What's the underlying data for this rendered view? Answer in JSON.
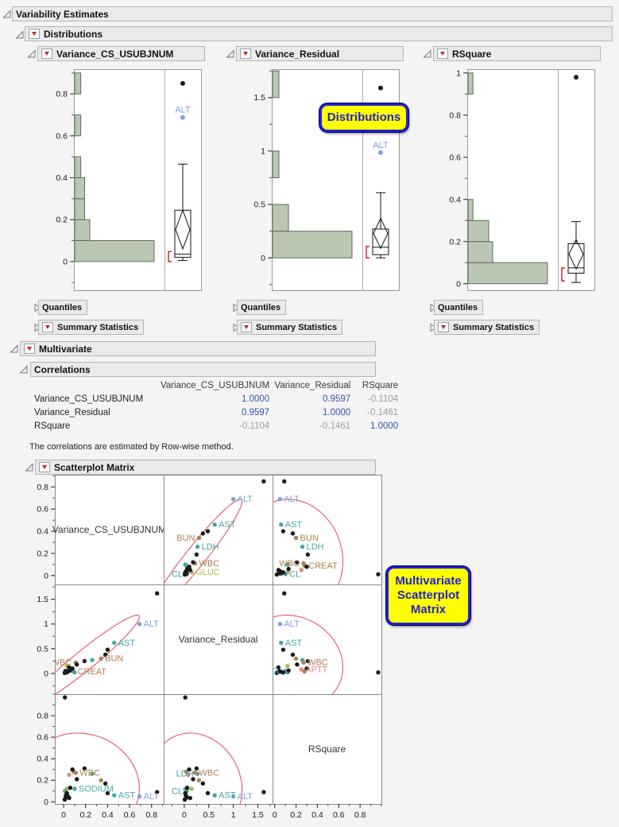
{
  "window": {
    "title": "Variability Estimates",
    "background": "#f4f4f4"
  },
  "headers": {
    "variability": "Variability Estimates",
    "distributions": "Distributions",
    "multivariate": "Multivariate",
    "correlations": "Correlations",
    "scatterplot_matrix": "Scatterplot Matrix",
    "quantiles": "Quantiles",
    "summary_statistics": "Summary Statistics"
  },
  "callouts": [
    {
      "text": "Distributions"
    },
    {
      "text": "Multivariate\nScatterplot\nMatrix"
    }
  ],
  "colors": {
    "corr_strong": "#3453b4",
    "corr_weak": "#a39ba3",
    "hist_fill": "#b9c7b3",
    "hist_stroke": "#5f6a5d",
    "ellipse": "#e8556a",
    "bracket": "#cc3344",
    "callout_bg": "#ffff00",
    "callout_accent": "#2222cc",
    "header_bg": "#eaeaea",
    "header_border": "#b4b4b4",
    "red_triangle": "#cc2231",
    "black_point": "#1a1a1a",
    "frame": "#999999"
  },
  "chart_data": {
    "distributions": [
      {
        "name": "Variance_CS_USUBJNUM",
        "type": "histogram+boxplot",
        "axis": {
          "min": -0.137,
          "max": 0.918,
          "majors": [
            0,
            0.2,
            0.4,
            0.6,
            0.8
          ],
          "labels": [
            "0",
            "0.2",
            "0.4",
            "0.6",
            "0.8"
          ],
          "minor": 0.1
        },
        "hist": {
          "start": 0,
          "step": 0.1,
          "frac": [
            1,
            0.19,
            0.125,
            0.125,
            0.076,
            0,
            0.076,
            0,
            0.076
          ]
        },
        "box": {
          "low": 0.005,
          "q1": 0.02,
          "median": 0.035,
          "q3": 0.245,
          "high": 0.465,
          "mean_diamond": [
            0.06,
            0.245
          ],
          "shortest_half": [
            0,
            0.048
          ]
        },
        "outliers": [
          {
            "v": 0.85,
            "color": "#1a1a1a",
            "label": ""
          },
          {
            "v": 0.688,
            "color": "#7d9ee0",
            "label": "ALT"
          }
        ]
      },
      {
        "name": "Variance_Residual",
        "type": "histogram+boxplot",
        "axis": {
          "min": -0.303,
          "max": 1.766,
          "majors": [
            0,
            0.5,
            1,
            1.5
          ],
          "labels": [
            "0",
            "0.5",
            "1",
            "1.5"
          ],
          "minor": 0.25
        },
        "hist": {
          "start": 0,
          "step": 0.25,
          "frac": [
            1,
            0.2,
            0,
            0.08,
            0,
            0,
            0.08
          ]
        },
        "box": {
          "low": 0.0,
          "q1": 0.03,
          "median": 0.1,
          "q3": 0.27,
          "high": 0.61,
          "mean_diamond": [
            0.09,
            0.37
          ],
          "shortest_half": [
            0,
            0.107
          ]
        },
        "outliers": [
          {
            "v": 1.59,
            "color": "#1a1a1a",
            "label": ""
          },
          {
            "v": 0.985,
            "color": "#7d9ee0",
            "label": "ALT"
          }
        ]
      },
      {
        "name": "RSquare",
        "type": "histogram+boxplot",
        "axis": {
          "min": -0.031,
          "max": 1.018,
          "majors": [
            0,
            0.2,
            0.4,
            0.6,
            0.8,
            1
          ],
          "labels": [
            "0",
            "0.2",
            "0.4",
            "0.6",
            "0.8",
            "1"
          ],
          "minor": 0.1
        },
        "hist": {
          "start": 0,
          "step": 0.1,
          "frac": [
            1,
            0.31,
            0.26,
            0.062,
            0,
            0,
            0,
            0,
            0,
            0.062
          ]
        },
        "box": {
          "low": 0.006,
          "q1": 0.05,
          "median": 0.075,
          "q3": 0.19,
          "high": 0.295,
          "mean_diamond": [
            0.07,
            0.21
          ],
          "shortest_half": [
            0.013,
            0.075
          ]
        },
        "outliers": [
          {
            "v": 0.98,
            "color": "#1a1a1a",
            "label": ""
          }
        ]
      }
    ],
    "correlation_table": {
      "method_columns": [
        "Variance_CS_USUBJNUM",
        "Variance_Residual",
        "RSquare"
      ],
      "rows": [
        {
          "label": "Variance_CS_USUBJNUM",
          "values": [
            "1.0000",
            "0.9597",
            "-0.1104"
          ],
          "tones": [
            "strong",
            "strong",
            "weak"
          ]
        },
        {
          "label": "Variance_Residual",
          "values": [
            "0.9597",
            "1.0000",
            "-0.1461"
          ],
          "tones": [
            "strong",
            "strong",
            "weak"
          ]
        },
        {
          "label": "RSquare",
          "values": [
            "-0.1104",
            "-0.1461",
            "1.0000"
          ],
          "tones": [
            "weak",
            "weak",
            "strong"
          ]
        }
      ]
    },
    "correlation_footnote": "The correlations are estimated by Row-wise method.",
    "scatterplot_matrix": {
      "type": "scatter",
      "variables": [
        {
          "key": "vcs",
          "label": "Variance_CS_USUBJNUM",
          "min": -0.08,
          "max": 0.91,
          "majors": [
            0,
            0.2,
            0.4,
            0.6,
            0.8
          ],
          "labels": [
            "0",
            "0.2",
            "0.4",
            "0.6",
            "0.8"
          ],
          "minor": 0.1
        },
        {
          "key": "vr",
          "label": "Variance_Residual",
          "min": -0.42,
          "max": 1.8,
          "majors": [
            0,
            0.5,
            1,
            1.5
          ],
          "labels": [
            "0",
            "0.5",
            "1",
            "1.5"
          ],
          "minor": 0.25
        },
        {
          "key": "rsq",
          "label": "RSquare",
          "min": -0.02,
          "max": 1.0,
          "majors": [
            0,
            0.2,
            0.4,
            0.6,
            0.8
          ],
          "labels": [
            "0",
            "0.2",
            "0.4",
            "0.6",
            "0.8"
          ],
          "minor": 0.1
        }
      ],
      "stats": {
        "mean": {
          "vcs": 0.183,
          "vr": 0.255,
          "rsq": 0.177
        },
        "sd": {
          "vcs": 0.23,
          "vr": 0.42,
          "rsq": 0.21
        },
        "corr": {
          "vcs_vr": 0.9597,
          "vcs_rsq": -0.1104,
          "vr_rsq": -0.1461
        },
        "k": 2.2
      },
      "points": [
        {
          "name": "ALT",
          "color": "#7d9ee0",
          "vcs": 0.69,
          "vr": 1.0,
          "rsq": 0.05
        },
        {
          "name": "AST",
          "color": "#44a5a5",
          "vcs": 0.46,
          "vr": 0.62,
          "rsq": 0.06
        },
        {
          "name": "BUN",
          "color": "#b08050",
          "vcs": 0.34,
          "vr": 0.3,
          "rsq": 0.2
        },
        {
          "name": "LDH",
          "color": "#44a5a5",
          "vcs": 0.26,
          "vr": 0.27,
          "rsq": 0.26
        },
        {
          "name": "WBC",
          "color": "#b08050",
          "vcs": 0.11,
          "vr": 0.22,
          "rsq": 0.27
        },
        {
          "name": "GLUC",
          "color": "#b5b546",
          "vcs": 0.03,
          "vr": 0.15,
          "rsq": 0.12
        },
        {
          "name": "CL",
          "color": "#44a5a5",
          "vcs": 0.013,
          "vr": 0.05,
          "rsq": 0.1
        },
        {
          "name": "CREAT",
          "color": "#b08050",
          "vcs": 0.09,
          "vr": 0.04,
          "rsq": 0.28
        },
        {
          "name": "APTT",
          "color": "#e8897a",
          "vcs": 0.05,
          "vr": 0.08,
          "rsq": 0.25
        },
        {
          "name": "SODIUM",
          "color": "#44a5a5",
          "vcs": 0.1,
          "vr": 0.02,
          "rsq": 0.12
        },
        {
          "name": null,
          "color": "#1a1a1a",
          "vcs": 0.85,
          "vr": 1.62,
          "rsq": 0.09
        },
        {
          "name": null,
          "color": "#1a1a1a",
          "vcs": 0.012,
          "vr": 0.02,
          "rsq": 0.97
        },
        {
          "name": null,
          "color": "#1a1a1a",
          "vcs": 0.4,
          "vr": 0.48,
          "rsq": 0.08
        },
        {
          "name": null,
          "color": "#1a1a1a",
          "vcs": 0.38,
          "vr": 0.38,
          "rsq": 0.17
        },
        {
          "name": null,
          "color": "#1a1a1a",
          "vcs": 0.19,
          "vr": 0.25,
          "rsq": 0.31
        },
        {
          "name": null,
          "color": "#1a1a1a",
          "vcs": 0.12,
          "vr": 0.18,
          "rsq": 0.21
        },
        {
          "name": null,
          "color": "#1a1a1a",
          "vcs": 0.08,
          "vr": 0.1,
          "rsq": 0.3
        },
        {
          "name": null,
          "color": "#1a1a1a",
          "vcs": 0.06,
          "vr": 0.06,
          "rsq": 0.13
        },
        {
          "name": null,
          "color": "#1a1a1a",
          "vcs": 0.04,
          "vr": 0.04,
          "rsq": 0.05
        },
        {
          "name": null,
          "color": "#1a1a1a",
          "vcs": 0.03,
          "vr": 0.02,
          "rsq": 0.08
        },
        {
          "name": null,
          "color": "#1a1a1a",
          "vcs": 0.02,
          "vr": 0.05,
          "rsq": 0.04
        },
        {
          "name": null,
          "color": "#1a1a1a",
          "vcs": 0.01,
          "vr": 0.01,
          "rsq": 0.02
        },
        {
          "name": null,
          "color": "#1a1a1a",
          "vcs": 0.05,
          "vr": 0.12,
          "rsq": 0.035
        },
        {
          "name": null,
          "color": "#1a1a1a",
          "vcs": 0.02,
          "vr": 0.03,
          "rsq": 0.06
        }
      ],
      "cell_labels": {
        "0,1": [
          [
            "ALT",
            "r"
          ],
          [
            "AST",
            "r"
          ],
          [
            "BUN",
            "l"
          ],
          [
            "LDH",
            "r"
          ],
          [
            "WBC",
            "r"
          ],
          [
            "GLUC",
            "r"
          ],
          [
            "CL",
            "l"
          ]
        ],
        "0,2": [
          [
            "ALT",
            "r"
          ],
          [
            "AST",
            "r"
          ],
          [
            "BUN",
            "r"
          ],
          [
            "LDH",
            "r"
          ],
          [
            "WBC",
            "l"
          ],
          [
            "CREAT",
            "r"
          ],
          [
            "CL",
            "r"
          ]
        ],
        "1,0": [
          [
            "ALT",
            "r"
          ],
          [
            "AST",
            "r"
          ],
          [
            "WBC",
            "l"
          ],
          [
            "BUN",
            "r"
          ],
          [
            "CREAT",
            "r"
          ]
        ],
        "1,2": [
          [
            "ALT",
            "r"
          ],
          [
            "AST",
            "r"
          ],
          [
            "WBC",
            "r"
          ],
          [
            "CL",
            "l"
          ],
          [
            "APTT",
            "r"
          ]
        ],
        "2,0": [
          [
            "WBC",
            "r"
          ],
          [
            "SODIUM",
            "r"
          ],
          [
            "AST",
            "r"
          ],
          [
            "ALT",
            "r"
          ]
        ],
        "2,1": [
          [
            "LDH",
            "l"
          ],
          [
            "WBC",
            "r"
          ],
          [
            "CL",
            "l"
          ],
          [
            "AST",
            "r"
          ],
          [
            "ALT",
            "r"
          ]
        ]
      }
    }
  }
}
